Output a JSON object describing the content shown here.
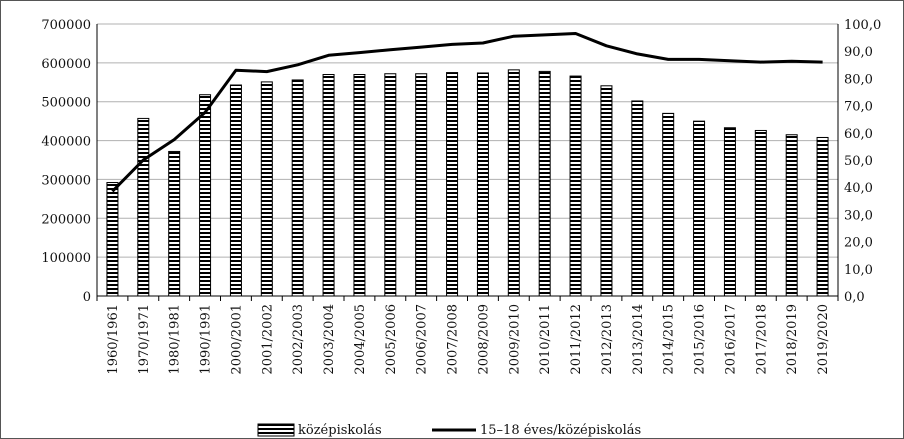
{
  "chart_data": {
    "type": "bar",
    "categories": [
      "1960/1961",
      "1970/1971",
      "1980/1981",
      "1990/1991",
      "2000/2001",
      "2001/2002",
      "2002/2003",
      "2003/2004",
      "2004/2005",
      "2005/2006",
      "2006/2007",
      "2007/2008",
      "2008/2009",
      "2009/2010",
      "2010/2011",
      "2011/2012",
      "2012/2013",
      "2013/2014",
      "2014/2015",
      "2015/2016",
      "2016/2017",
      "2017/2018",
      "2018/2019",
      "2019/2020"
    ],
    "series": [
      {
        "name": "középiskolás",
        "type": "bar",
        "axis": "left",
        "values": [
          292000,
          457000,
          372000,
          518000,
          543000,
          551000,
          556000,
          570000,
          570000,
          572000,
          572000,
          575000,
          574000,
          582000,
          578000,
          566000,
          541000,
          502000,
          470000,
          450000,
          433000,
          426000,
          415000,
          408000
        ]
      },
      {
        "name": "15–18 éves/középiskolás",
        "type": "line",
        "axis": "right",
        "values": [
          38.5,
          50.0,
          57.5,
          67.5,
          83.0,
          82.5,
          85.0,
          88.5,
          89.5,
          90.5,
          91.5,
          92.5,
          93.0,
          95.5,
          96.0,
          96.5,
          92.0,
          89.0,
          87.0,
          87.0,
          86.5,
          86.0,
          86.3,
          86.0
        ]
      }
    ],
    "y_left": {
      "min": 0,
      "max": 700000,
      "ticks": [
        "0",
        "100000",
        "200000",
        "300000",
        "400000",
        "500000",
        "600000",
        "700000"
      ]
    },
    "y_right": {
      "min": 0,
      "max": 100,
      "ticks": [
        "0,0",
        "10,0",
        "20,0",
        "30,0",
        "40,0",
        "50,0",
        "60,0",
        "70,0",
        "80,0",
        "90,0",
        "100,0"
      ]
    },
    "grid": true,
    "legend_position": "bottom",
    "colors": {
      "bar_fill": "#ffffff",
      "bar_stripe": "#000000",
      "line": "#000000",
      "grid": "#b0b0b0",
      "axis": "#000000"
    }
  }
}
